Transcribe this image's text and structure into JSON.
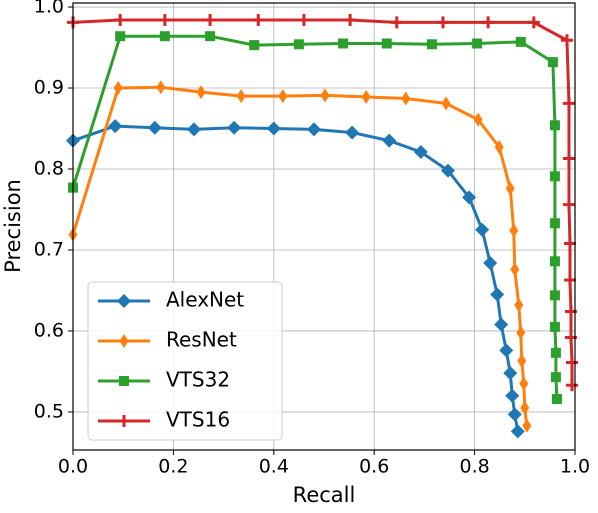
{
  "chart_data": {
    "type": "line",
    "x_label": "Recall",
    "y_label": "Precision",
    "xlim": [
      0,
      1
    ],
    "ylim": [
      0.453,
      1.005
    ],
    "xticks": [
      {
        "value": 0,
        "label": "0.0"
      },
      0.2,
      0.4,
      0.6,
      0.8,
      {
        "value": 1,
        "label": "1.0"
      }
    ],
    "yticks": [
      0.5,
      0.6,
      0.7,
      0.8,
      0.9,
      {
        "value": 1,
        "label": "1.0"
      }
    ],
    "grid": true,
    "legend_position": "lower left",
    "series": [
      {
        "name": "AlexNet",
        "color": "#1f77b4",
        "marker": "diamond",
        "x": [
          0,
          0.084,
          0.163,
          0.241,
          0.321,
          0.4,
          0.48,
          0.556,
          0.63,
          0.693,
          0.747,
          0.789,
          0.815,
          0.831,
          0.845,
          0.853,
          0.863,
          0.871,
          0.875,
          0.88,
          0.886
        ],
        "values": [
          0.835,
          0.853,
          0.851,
          0.849,
          0.851,
          0.85,
          0.849,
          0.845,
          0.835,
          0.821,
          0.798,
          0.765,
          0.725,
          0.684,
          0.645,
          0.608,
          0.576,
          0.548,
          0.52,
          0.497,
          0.476
        ]
      },
      {
        "name": "ResNet",
        "color": "#ff7f0e",
        "marker": "thin_diamond",
        "x": [
          0,
          0.09,
          0.175,
          0.255,
          0.335,
          0.418,
          0.502,
          0.584,
          0.663,
          0.743,
          0.807,
          0.849,
          0.871,
          0.878,
          0.88,
          0.888,
          0.892,
          0.894,
          0.898,
          0.9,
          0.904
        ],
        "values": [
          0.719,
          0.9,
          0.901,
          0.895,
          0.89,
          0.89,
          0.891,
          0.889,
          0.887,
          0.881,
          0.861,
          0.827,
          0.776,
          0.724,
          0.676,
          0.632,
          0.598,
          0.563,
          0.535,
          0.505,
          0.483
        ]
      },
      {
        "name": "VTS32",
        "color": "#2ca02c",
        "marker": "square",
        "x": [
          0,
          0.094,
          0.183,
          0.273,
          0.361,
          0.45,
          0.538,
          0.625,
          0.715,
          0.805,
          0.892,
          0.956,
          0.96,
          0.96,
          0.96,
          0.96,
          0.96,
          0.96,
          0.962,
          0.962,
          0.964
        ],
        "values": [
          0.777,
          0.964,
          0.964,
          0.964,
          0.953,
          0.954,
          0.955,
          0.955,
          0.954,
          0.955,
          0.957,
          0.932,
          0.854,
          0.791,
          0.733,
          0.686,
          0.644,
          0.605,
          0.573,
          0.543,
          0.516
        ]
      },
      {
        "name": "VTS16",
        "color": "#d62728",
        "marker": "plus",
        "x": [
          0,
          0.094,
          0.183,
          0.273,
          0.369,
          0.46,
          0.552,
          0.645,
          0.737,
          0.827,
          0.918,
          0.984,
          0.988,
          0.988,
          0.988,
          0.99,
          0.99,
          0.992,
          0.992,
          0.994,
          0.994
        ],
        "values": [
          0.981,
          0.984,
          0.984,
          0.984,
          0.984,
          0.984,
          0.984,
          0.981,
          0.981,
          0.981,
          0.981,
          0.959,
          0.881,
          0.813,
          0.756,
          0.708,
          0.663,
          0.624,
          0.592,
          0.561,
          0.533
        ]
      }
    ]
  }
}
